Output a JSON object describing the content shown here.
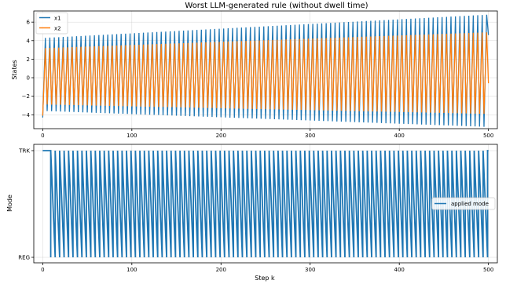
{
  "title": "Worst LLM-generated rule (without dwell time)",
  "chart_data": [
    {
      "type": "line",
      "title": "Worst LLM-generated rule (without dwell time)",
      "xlabel": "",
      "ylabel": "States",
      "xlim": [
        -10,
        510
      ],
      "ylim": [
        -5.5,
        7.2
      ],
      "xticks": [
        0,
        100,
        200,
        300,
        400,
        500
      ],
      "yticks": [
        -4,
        -2,
        0,
        2,
        4,
        6
      ],
      "xtick_labels": [
        "0",
        "100",
        "200",
        "300",
        "400",
        "500"
      ],
      "ytick_labels": [
        "−4",
        "−2",
        "0",
        "2",
        "4",
        "6"
      ],
      "grid": true,
      "legend": "top-left",
      "series": [
        {
          "name": "x1",
          "color": "#1f77b4",
          "start": -4.3,
          "period": 5,
          "peaks": {
            "x": [
              3,
              499
            ],
            "y": [
              4.3,
              6.8
            ]
          },
          "troughs": {
            "x": [
              5,
              497
            ],
            "y": [
              -3.6,
              -5.3
            ]
          },
          "end": 4.6
        },
        {
          "name": "x2",
          "color": "#ff7f0e",
          "start": -4.1,
          "period": 5,
          "peaks": {
            "x": [
              3,
              499
            ],
            "y": [
              3.2,
              4.9
            ]
          },
          "troughs": {
            "x": [
              5,
              497
            ],
            "y": [
              -2.9,
              -3.9
            ]
          },
          "end": -0.6
        }
      ]
    },
    {
      "type": "line",
      "title": "",
      "xlabel": "Step k",
      "ylabel": "Mode",
      "xlim": [
        -10,
        510
      ],
      "xticks": [
        0,
        100,
        200,
        300,
        400,
        500
      ],
      "xtick_labels": [
        "0",
        "100",
        "200",
        "300",
        "400",
        "500"
      ],
      "yticks": [
        "REG",
        "TRK"
      ],
      "ytick_labels": [
        "REG",
        "TRK"
      ],
      "grid": true,
      "legend": "center-right",
      "series": [
        {
          "name": "applied mode",
          "color": "#1f77b4",
          "initial_mode": "TRK",
          "initial_trk_until": 9,
          "switch_period": 5,
          "end": 500
        }
      ]
    }
  ]
}
